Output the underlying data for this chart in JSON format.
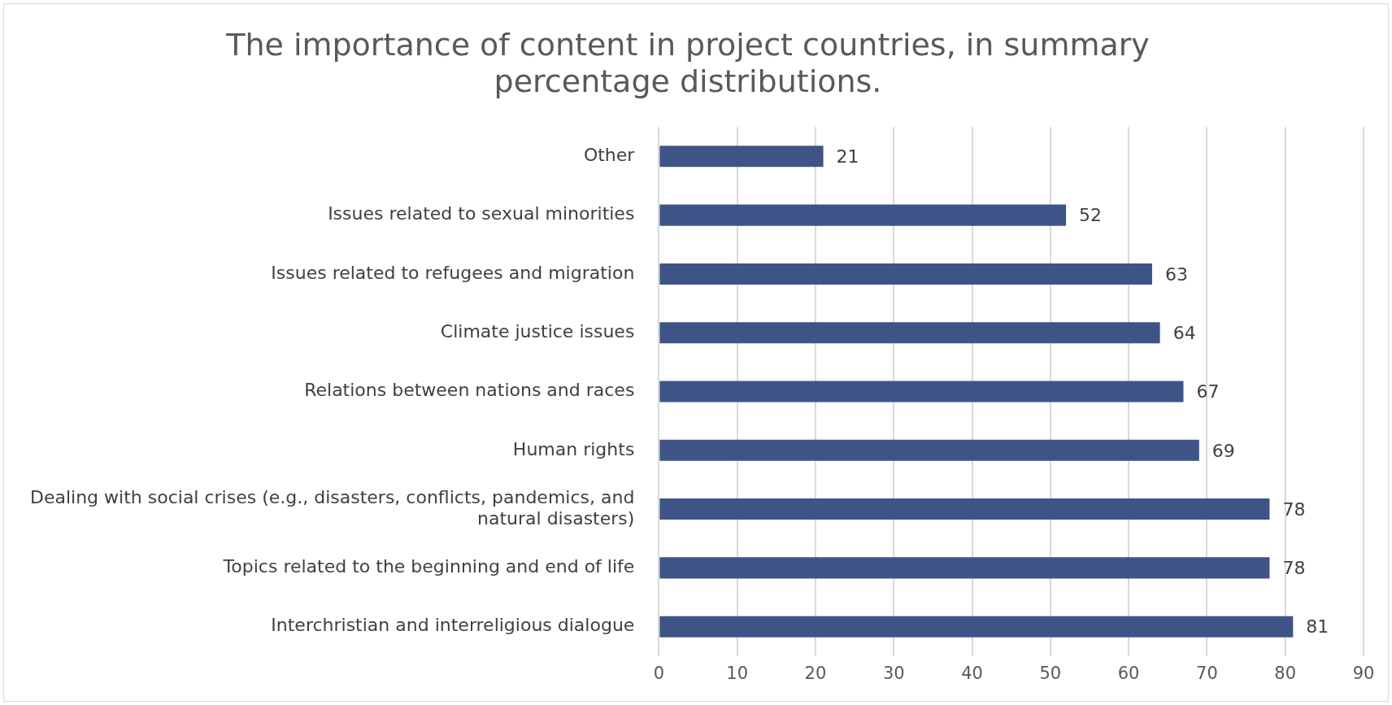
{
  "chart_data": {
    "type": "bar",
    "orientation": "horizontal",
    "title": "The importance of content in project countries, in summary percentage distributions.",
    "categories": [
      "Other",
      "Issues related to sexual minorities",
      "Issues related to refugees and migration",
      "Climate justice issues",
      "Relations between nations and races",
      "Human rights",
      "Dealing with social crises (e.g., disasters, conflicts, pandemics, and natural disasters)",
      "Topics related to the beginning and end of life",
      "Interchristian and interreligious dialogue"
    ],
    "values": [
      21,
      52,
      63,
      64,
      67,
      69,
      78,
      78,
      81
    ],
    "color": "#3f5486",
    "xlim": [
      0,
      90
    ],
    "xticks": [
      0,
      10,
      20,
      30,
      40,
      50,
      60,
      70,
      80,
      90
    ],
    "grid": "x",
    "data_labels": true,
    "legend": false
  }
}
